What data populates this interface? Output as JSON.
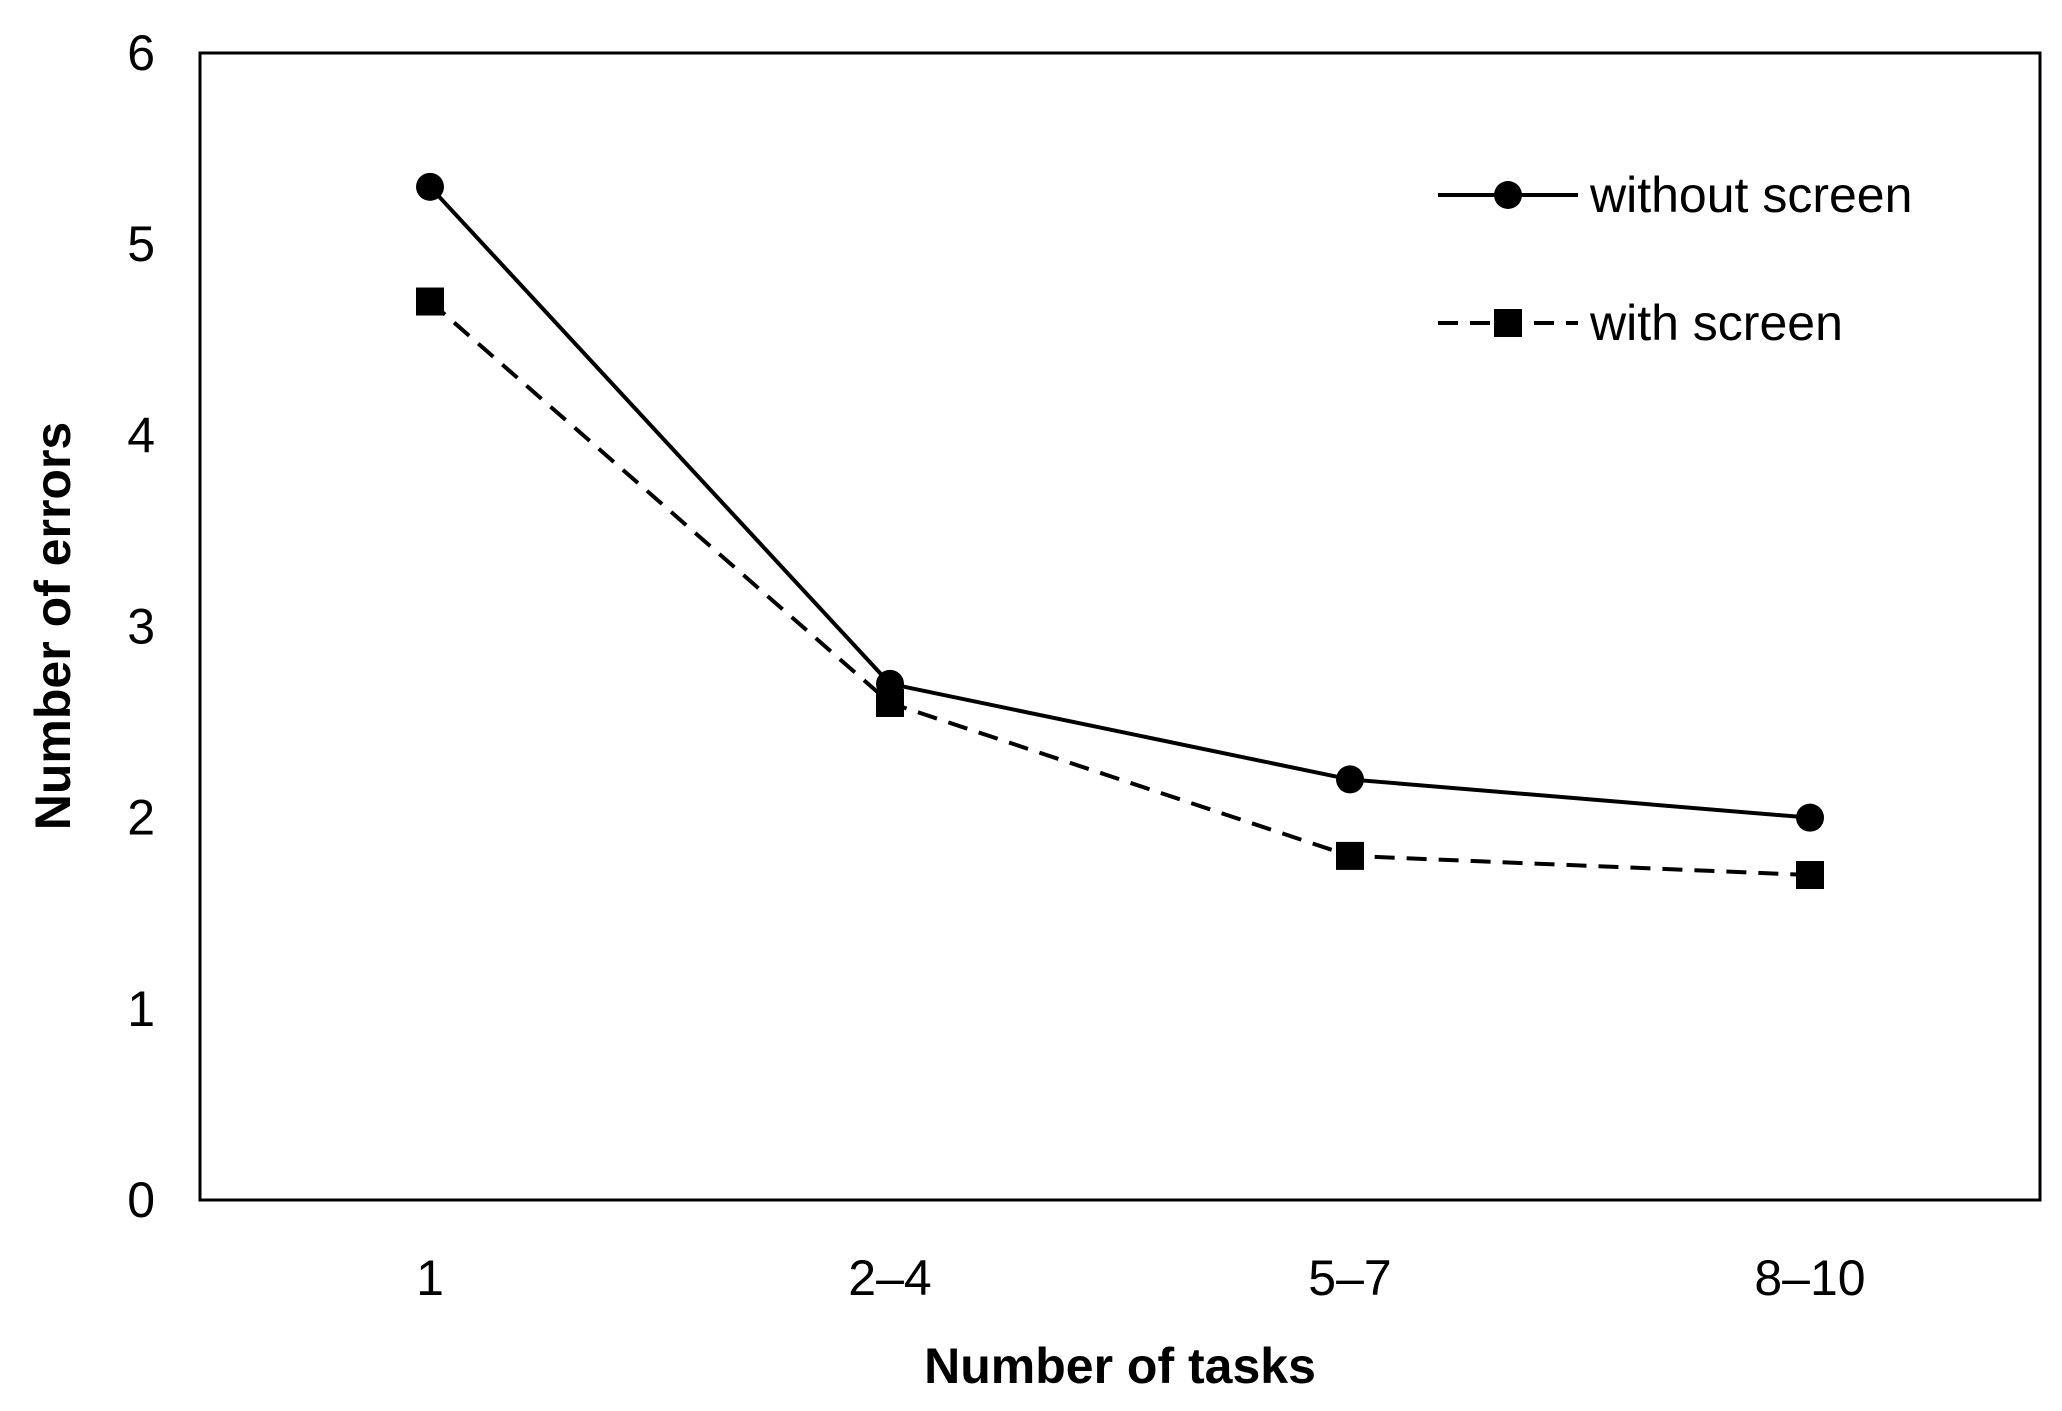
{
  "chart_data": {
    "type": "line",
    "title": "",
    "xlabel": "Number of tasks",
    "ylabel": "Number of errors",
    "categories": [
      "1",
      "2–4",
      "5–7",
      "8–10"
    ],
    "ylim": [
      0,
      6
    ],
    "yticks": [
      "0",
      "1",
      "2",
      "3",
      "4",
      "5",
      "6"
    ],
    "grid": false,
    "legend_position": "top-right",
    "series": [
      {
        "name": "without screen",
        "values": [
          5.3,
          2.7,
          2.2,
          2.0
        ],
        "line_style": "solid",
        "marker": "circle",
        "color": "#000000"
      },
      {
        "name": "with screen",
        "values": [
          4.7,
          2.6,
          1.8,
          1.7
        ],
        "line_style": "dashed",
        "marker": "square",
        "color": "#000000"
      }
    ]
  }
}
